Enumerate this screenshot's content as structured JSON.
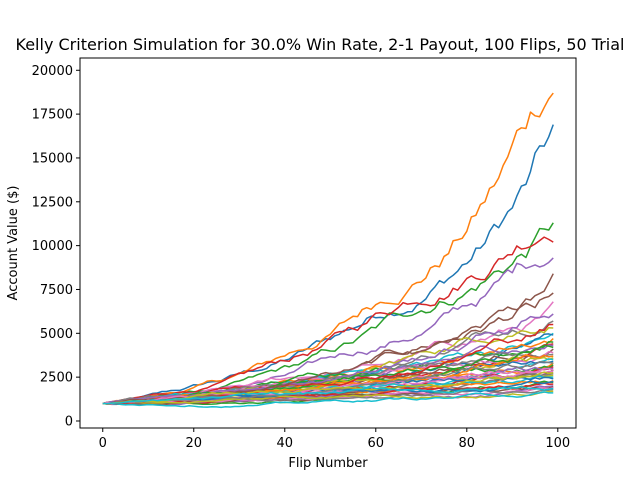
{
  "chart_data": {
    "type": "line",
    "title": "Kelly Criterion Simulation for 30.0% Win Rate, 2-1 Payout, 100 Flips, 50 Trial",
    "xlabel": "Flip Number",
    "ylabel": "Account Value ($)",
    "xlim": [
      -5,
      104
    ],
    "ylim": [
      -400,
      20700
    ],
    "x_ticks": [
      0,
      20,
      40,
      60,
      80,
      100
    ],
    "y_ticks": [
      0,
      2500,
      5000,
      7500,
      10000,
      12500,
      15000,
      17500,
      20000
    ],
    "x_tick_labels": [
      "0",
      "20",
      "40",
      "60",
      "80",
      "100"
    ],
    "y_tick_labels": [
      "0",
      "2500",
      "5000",
      "7500",
      "10000",
      "12500",
      "15000",
      "17500",
      "20000"
    ],
    "grid": false,
    "legend": "none",
    "initial_value": 1000,
    "num_flips": 100,
    "win_rate": 0.3,
    "payout": 2,
    "series_colors": [
      "#1f77b4",
      "#ff7f0e",
      "#2ca02c",
      "#d62728",
      "#9467bd",
      "#8c564b",
      "#e377c2",
      "#7f7f7f",
      "#bcbd22",
      "#17becf"
    ],
    "series_final_values": [
      16900,
      18700,
      11300,
      10200,
      9300,
      8400,
      6800,
      5700,
      5300,
      5000,
      4900,
      4700,
      4500,
      4400,
      4300,
      4100,
      3900,
      3800,
      3600,
      3500,
      3400,
      3300,
      3200,
      3100,
      3000,
      2900,
      2800,
      2700,
      2600,
      2500,
      2400,
      2300,
      2200,
      2100,
      2000,
      1950,
      1900,
      1800,
      1700,
      1600,
      2250,
      3700,
      4200,
      5500,
      6100,
      7300,
      2900,
      3300,
      2750,
      1850
    ]
  }
}
